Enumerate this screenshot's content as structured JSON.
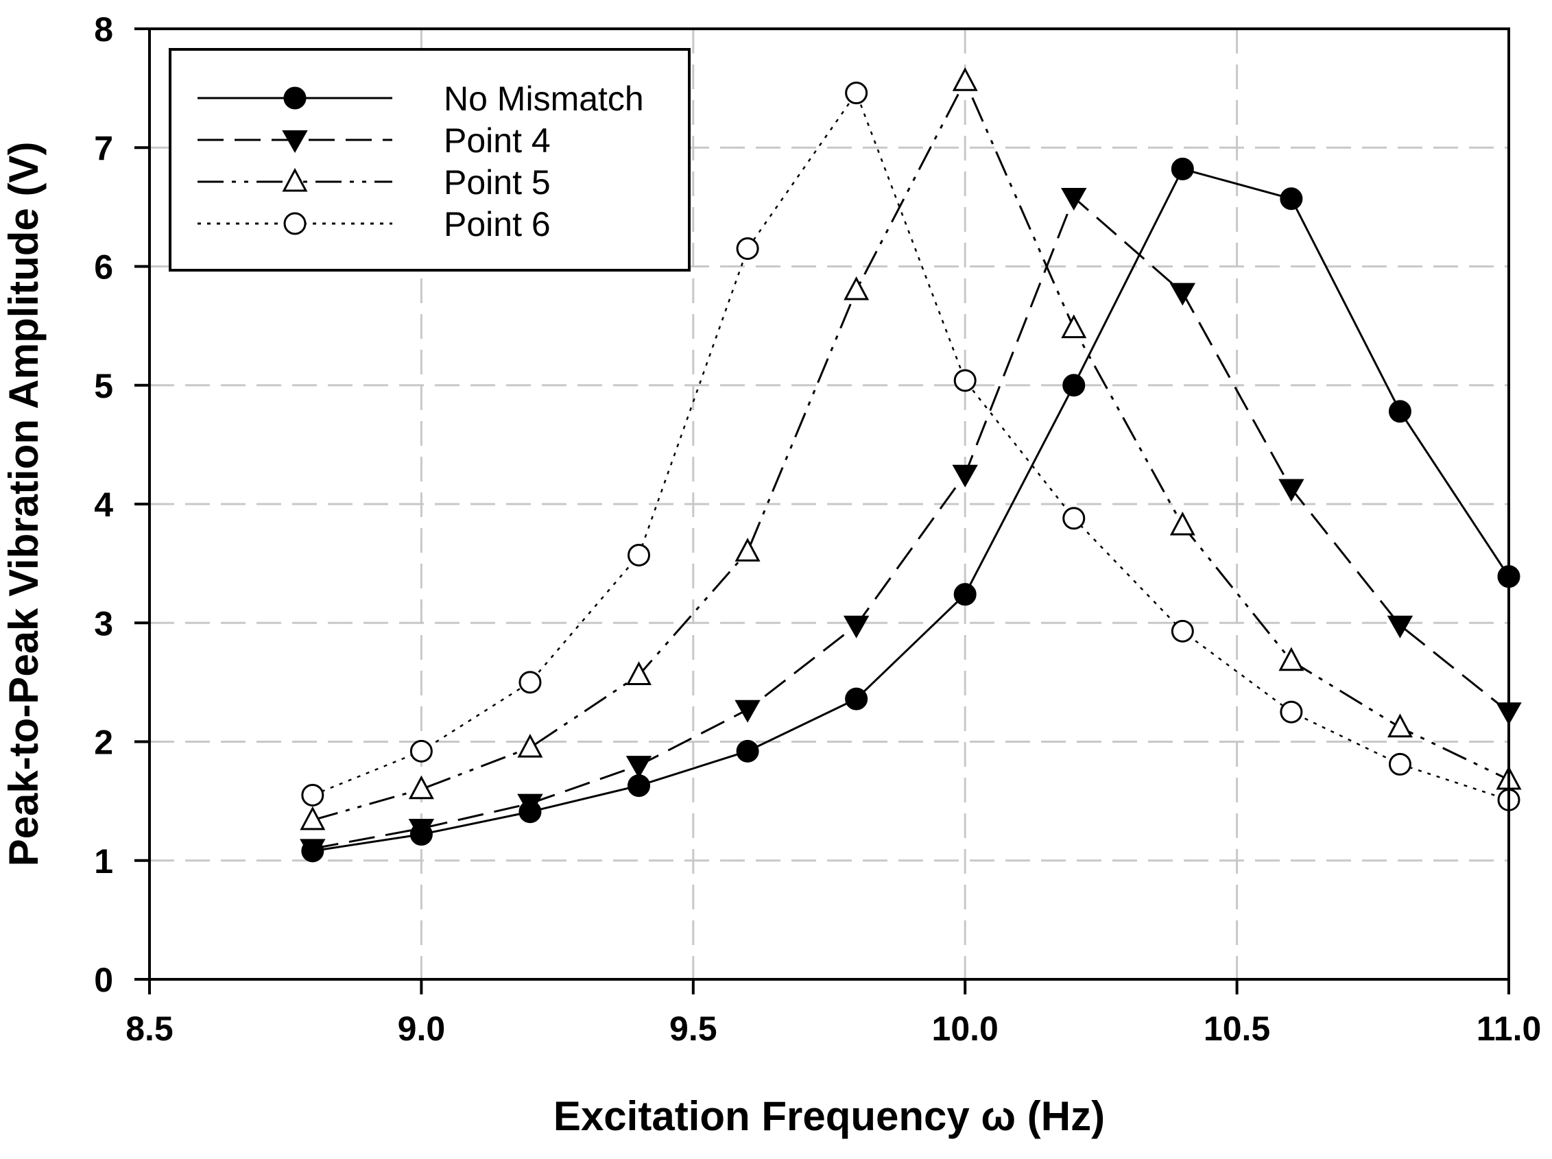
{
  "chart_data": {
    "type": "line",
    "title": "",
    "xlabel": "Excitation Frequency ω (Hz)",
    "ylabel": "Peak-to-Peak Vibration Amplitude (V)",
    "xlim": [
      8.5,
      11.0
    ],
    "ylim": [
      0,
      8
    ],
    "xticks": [
      "8.5",
      "9.0",
      "9.5",
      "10.0",
      "10.5",
      "11.0"
    ],
    "yticks": [
      "0",
      "1",
      "2",
      "3",
      "4",
      "5",
      "6",
      "7",
      "8"
    ],
    "grid": true,
    "legend_position": "top-left",
    "x": [
      8.8,
      9.0,
      9.2,
      9.4,
      9.6,
      9.8,
      10.0,
      10.2,
      10.4,
      10.6,
      10.8,
      11.0
    ],
    "series": [
      {
        "name": "No Mismatch",
        "marker": "filled-circle",
        "line_style": "solid",
        "values": [
          1.08,
          1.22,
          1.41,
          1.63,
          1.92,
          2.36,
          3.24,
          5.0,
          6.82,
          6.57,
          4.78,
          3.39
        ]
      },
      {
        "name": "Point 4",
        "marker": "filled-triangle-down",
        "line_style": "dashed",
        "values": [
          1.1,
          1.27,
          1.48,
          1.8,
          2.27,
          2.98,
          4.25,
          6.58,
          5.78,
          4.13,
          2.98,
          2.25
        ]
      },
      {
        "name": "Point 5",
        "marker": "open-triangle-up",
        "line_style": "dash-dot-dot",
        "values": [
          1.34,
          1.6,
          1.95,
          2.56,
          3.6,
          5.8,
          7.56,
          5.48,
          3.82,
          2.68,
          2.12,
          1.68
        ]
      },
      {
        "name": "Point 6",
        "marker": "open-circle",
        "line_style": "dotted",
        "values": [
          1.55,
          1.92,
          2.5,
          3.57,
          6.15,
          7.46,
          5.04,
          3.88,
          2.93,
          2.25,
          1.81,
          1.51
        ]
      }
    ]
  }
}
